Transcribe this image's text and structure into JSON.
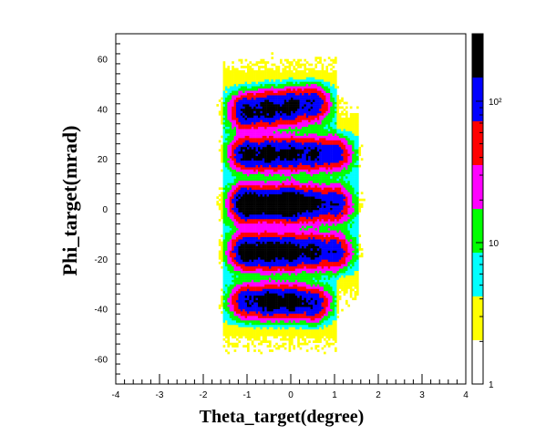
{
  "chart_data": {
    "type": "heatmap",
    "title": "",
    "xlabel": "Theta_target(degree)",
    "ylabel": "Phi_target(mrad)",
    "xlim": [
      -4,
      4
    ],
    "ylim": [
      -70,
      70
    ],
    "x_ticks": [
      "-4",
      "-3",
      "-2",
      "-1",
      "0",
      "1",
      "2",
      "3",
      "4"
    ],
    "y_ticks": [
      "60",
      "40",
      "20",
      "0",
      "-20",
      "-40",
      "-60"
    ],
    "colorbar": {
      "scale": "log",
      "range": [
        1,
        300
      ],
      "tick_labels": [
        "1",
        "10",
        "10²"
      ],
      "colors": [
        "#ffffff",
        "#ffff00",
        "#00ffff",
        "#00ff00",
        "#ff00ff",
        "#ff0000",
        "#0000ff",
        "#000000"
      ]
    },
    "rows": [
      {
        "phi": 40,
        "spread": 3.6,
        "spots": [
          {
            "theta": -1.0,
            "peak": 180,
            "phi_offset": -1
          },
          {
            "theta": -0.5,
            "peak": 200,
            "phi_offset": 0
          },
          {
            "theta": 0.0,
            "peak": 190,
            "phi_offset": 1
          },
          {
            "theta": 0.5,
            "peak": 140,
            "phi_offset": 2
          }
        ]
      },
      {
        "phi": 22,
        "spread": 3.4,
        "spots": [
          {
            "theta": -1.0,
            "peak": 190,
            "phi_offset": 0
          },
          {
            "theta": -0.5,
            "peak": 200,
            "phi_offset": 0
          },
          {
            "theta": 0.0,
            "peak": 190,
            "phi_offset": 0
          },
          {
            "theta": 0.5,
            "peak": 160,
            "phi_offset": 0
          },
          {
            "theta": 1.0,
            "peak": 110,
            "phi_offset": 0
          }
        ]
      },
      {
        "phi": 2,
        "spread": 3.6,
        "spots": [
          {
            "theta": -1.0,
            "peak": 320,
            "phi_offset": 0
          },
          {
            "theta": -0.5,
            "peak": 240,
            "phi_offset": 0
          },
          {
            "theta": 0.0,
            "peak": 350,
            "phi_offset": 0
          },
          {
            "theta": 0.5,
            "peak": 180,
            "phi_offset": 0
          },
          {
            "theta": 1.0,
            "peak": 140,
            "phi_offset": 0
          }
        ]
      },
      {
        "phi": -17,
        "spread": 3.6,
        "spots": [
          {
            "theta": -1.0,
            "peak": 240,
            "phi_offset": 0
          },
          {
            "theta": -0.5,
            "peak": 260,
            "phi_offset": 0
          },
          {
            "theta": 0.0,
            "peak": 230,
            "phi_offset": 0
          },
          {
            "theta": 0.5,
            "peak": 170,
            "phi_offset": 0
          },
          {
            "theta": 1.0,
            "peak": 120,
            "phi_offset": 0
          }
        ]
      },
      {
        "phi": -37,
        "spread": 3.4,
        "spots": [
          {
            "theta": -1.0,
            "peak": 140,
            "phi_offset": 0
          },
          {
            "theta": -0.5,
            "peak": 230,
            "phi_offset": 0
          },
          {
            "theta": 0.0,
            "peak": 210,
            "phi_offset": 0
          },
          {
            "theta": 0.5,
            "peak": 150,
            "phi_offset": -1
          }
        ]
      }
    ]
  }
}
